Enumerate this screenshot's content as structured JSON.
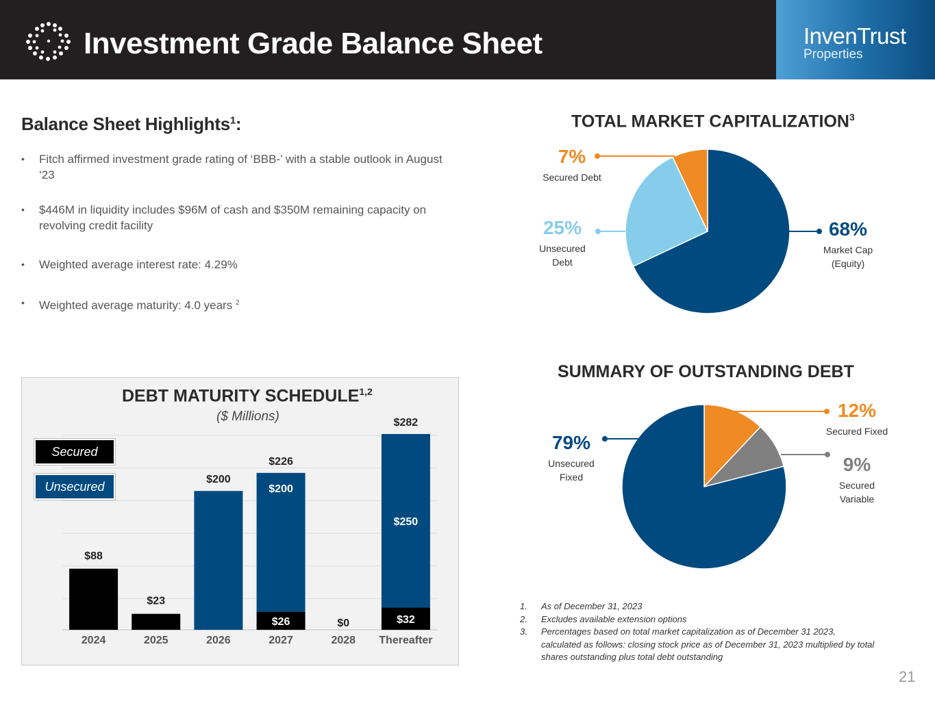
{
  "header": {
    "title": "Investment Grade Balance Sheet",
    "brand_name": "InvenTrust",
    "brand_sub": "Properties"
  },
  "highlights": {
    "title": "Balance Sheet Highlights",
    "title_sup": "1",
    "title_suffix": ":",
    "bullet_char": "•",
    "bullets": [
      "Fitch affirmed investment grade rating of ‘BBB-’ with a stable outlook in August ‘23",
      "$446M in liquidity includes $96M of cash and $350M remaining capacity on revolving credit facility",
      "Weighted average interest rate: 4.29%",
      "Weighted average maturity: 4.0 years"
    ],
    "bullet4_sup": "2"
  },
  "debt_chart": {
    "title": "DEBT MATURITY SCHEDULE",
    "title_sup": "1,2",
    "subtitle": "($ Millions)",
    "legend": {
      "secured": "Secured",
      "unsecured": "Unsecured"
    }
  },
  "market_cap": {
    "title": "TOTAL MARKET CAPITALIZATION",
    "title_sup": "3"
  },
  "outstanding_debt": {
    "title": "SUMMARY OF OUTSTANDING DEBT"
  },
  "colors": {
    "navy": "#004a80",
    "light_blue": "#86cdec",
    "orange": "#f08a24",
    "gray": "#808080",
    "black": "#000000"
  },
  "chart_data": [
    {
      "type": "bar",
      "stacked": true,
      "title": "DEBT MATURITY SCHEDULE",
      "subtitle": "($ Millions)",
      "categories": [
        "2024",
        "2025",
        "2026",
        "2027",
        "2028",
        "Thereafter"
      ],
      "series": [
        {
          "name": "Secured",
          "values": [
            88,
            23,
            0,
            26,
            0,
            32
          ],
          "labels": [
            "$88",
            "$23",
            "",
            "$26",
            "",
            "$32"
          ]
        },
        {
          "name": "Unsecured",
          "values": [
            0,
            0,
            200,
            200,
            0,
            250
          ],
          "labels": [
            "",
            "",
            "",
            "$200",
            "",
            "$250"
          ]
        }
      ],
      "totals": [
        "",
        "",
        "$200",
        "$226",
        "$0",
        "$282"
      ],
      "ylim": [
        0,
        282
      ],
      "xlabel": "",
      "ylabel": ""
    },
    {
      "type": "pie",
      "title": "TOTAL MARKET CAPITALIZATION",
      "slices": [
        {
          "label": "Market Cap (Equity)",
          "line1": "Market Cap",
          "line2": "(Equity)",
          "value": 68,
          "pct": "68%",
          "color": "#004a80"
        },
        {
          "label": "Unsecured Debt",
          "line1": "Unsecured",
          "line2": "Debt",
          "value": 25,
          "pct": "25%",
          "color": "#86cdec"
        },
        {
          "label": "Secured Debt",
          "line1": "Secured Debt",
          "line2": "",
          "value": 7,
          "pct": "7%",
          "color": "#f08a24"
        }
      ]
    },
    {
      "type": "pie",
      "title": "SUMMARY OF OUTSTANDING DEBT",
      "slices": [
        {
          "label": "Secured Fixed",
          "line1": "Secured Fixed",
          "line2": "",
          "value": 12,
          "pct": "12%",
          "color": "#f08a24"
        },
        {
          "label": "Secured Variable",
          "line1": "Secured",
          "line2": "Variable",
          "value": 9,
          "pct": "9%",
          "color": "#808080"
        },
        {
          "label": "Unsecured Fixed",
          "line1": "Unsecured",
          "line2": "Fixed",
          "value": 79,
          "pct": "79%",
          "color": "#004a80"
        }
      ]
    }
  ],
  "footnotes": [
    {
      "n": "1.",
      "text": "As of December 31, 2023"
    },
    {
      "n": "2.",
      "text": "Excludes available extension options"
    },
    {
      "n": "3.",
      "text": "Percentages based on total market capitalization as of  December 31 2023, calculated as follows: closing stock price as of December 31, 2023 multiplied by total shares outstanding plus total debt outstanding"
    }
  ],
  "page_number": "21"
}
